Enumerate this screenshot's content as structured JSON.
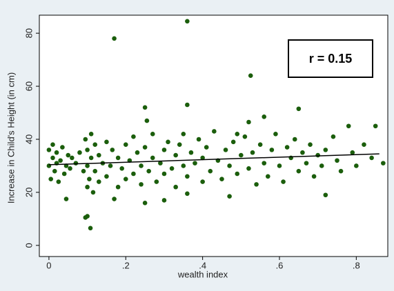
{
  "chart_data": {
    "type": "scatter",
    "x_label": "wealth index",
    "y_label": "Increase in Child's Height (in cm)",
    "annotation": "r = 0.15",
    "color": "#1b5e0c",
    "line_color": "#000000",
    "grid": false,
    "xlim": [
      -0.025,
      0.882
    ],
    "ylim": [
      -4.2,
      86.8
    ],
    "xticks": [
      0,
      {
        "value": 0.2,
        "label": ".2"
      },
      {
        "value": 0.4,
        "label": ".4"
      },
      {
        "value": 0.6,
        "label": ".6"
      },
      {
        "value": 0.8,
        "label": ".8"
      }
    ],
    "yticks": [
      0,
      20,
      40,
      60,
      80
    ],
    "x": [
      0,
      0,
      0.005,
      0.01,
      0.01,
      0.015,
      0.02,
      0.02,
      0.025,
      0.03,
      0.035,
      0.04,
      0.045,
      0.05,
      0.055,
      0.06,
      0.07,
      0.08,
      0.09,
      0.095,
      0.1,
      0.1,
      0.1,
      0.105,
      0.11,
      0.11,
      0.115,
      0.12,
      0.12,
      0.13,
      0.13,
      0.14,
      0.15,
      0.15,
      0.16,
      0.165,
      0.18,
      0.18,
      0.19,
      0.2,
      0.2,
      0.21,
      0.22,
      0.22,
      0.23,
      0.24,
      0.24,
      0.25,
      0.26,
      0.27,
      0.27,
      0.28,
      0.29,
      0.3,
      0.3,
      0.31,
      0.32,
      0.33,
      0.33,
      0.34,
      0.35,
      0.35,
      0.36,
      0.37,
      0.38,
      0.39,
      0.4,
      0.4,
      0.41,
      0.42,
      0.43,
      0.44,
      0.45,
      0.46,
      0.47,
      0.48,
      0.49,
      0.5,
      0.51,
      0.52,
      0.53,
      0.54,
      0.55,
      0.56,
      0.57,
      0.58,
      0.59,
      0.6,
      0.61,
      0.62,
      0.63,
      0.64,
      0.65,
      0.66,
      0.67,
      0.68,
      0.69,
      0.7,
      0.71,
      0.72,
      0.74,
      0.75,
      0.76,
      0.78,
      0.79,
      0.8,
      0.82,
      0.84,
      0.85,
      0.87,
      0.17,
      0.36,
      0.525,
      0.36,
      0.25,
      0.65,
      0.255,
      0.1,
      0.095,
      0.108,
      0.045,
      0.17,
      0.25,
      0.3,
      0.36,
      0.47,
      0.72,
      0.49,
      0.56,
      0.52
    ],
    "y": [
      30,
      36,
      25,
      33,
      38,
      28,
      31,
      35,
      24,
      32,
      37,
      27,
      30,
      34,
      29,
      33,
      31,
      35,
      28,
      40,
      22,
      30,
      36,
      25,
      33,
      42,
      20,
      28,
      38,
      24,
      34,
      31,
      26,
      39,
      30,
      36,
      22,
      33,
      29,
      38,
      25,
      32,
      27,
      41,
      35,
      23,
      30,
      37,
      28,
      33,
      42,
      24,
      31,
      36,
      27,
      39,
      29,
      34,
      22,
      38,
      30,
      42,
      26,
      35,
      31,
      40,
      24,
      33,
      37,
      28,
      43,
      32,
      25,
      36,
      30,
      39,
      27,
      34,
      41,
      29,
      35,
      23,
      38,
      31,
      26,
      36,
      42,
      30,
      24,
      37,
      33,
      40,
      28,
      35,
      31,
      38,
      26,
      34,
      30,
      36,
      41,
      32,
      28,
      45,
      35,
      30,
      38,
      33,
      45,
      31,
      78,
      84.5,
      64,
      53,
      52,
      51.5,
      47,
      11,
      10.5,
      6.5,
      17.5,
      17.5,
      16,
      17,
      19.5,
      18.5,
      19,
      42,
      48.5,
      46.5
    ],
    "fit_line": {
      "x": [
        0,
        0.86
      ],
      "y": [
        30.4,
        34.5
      ]
    }
  }
}
